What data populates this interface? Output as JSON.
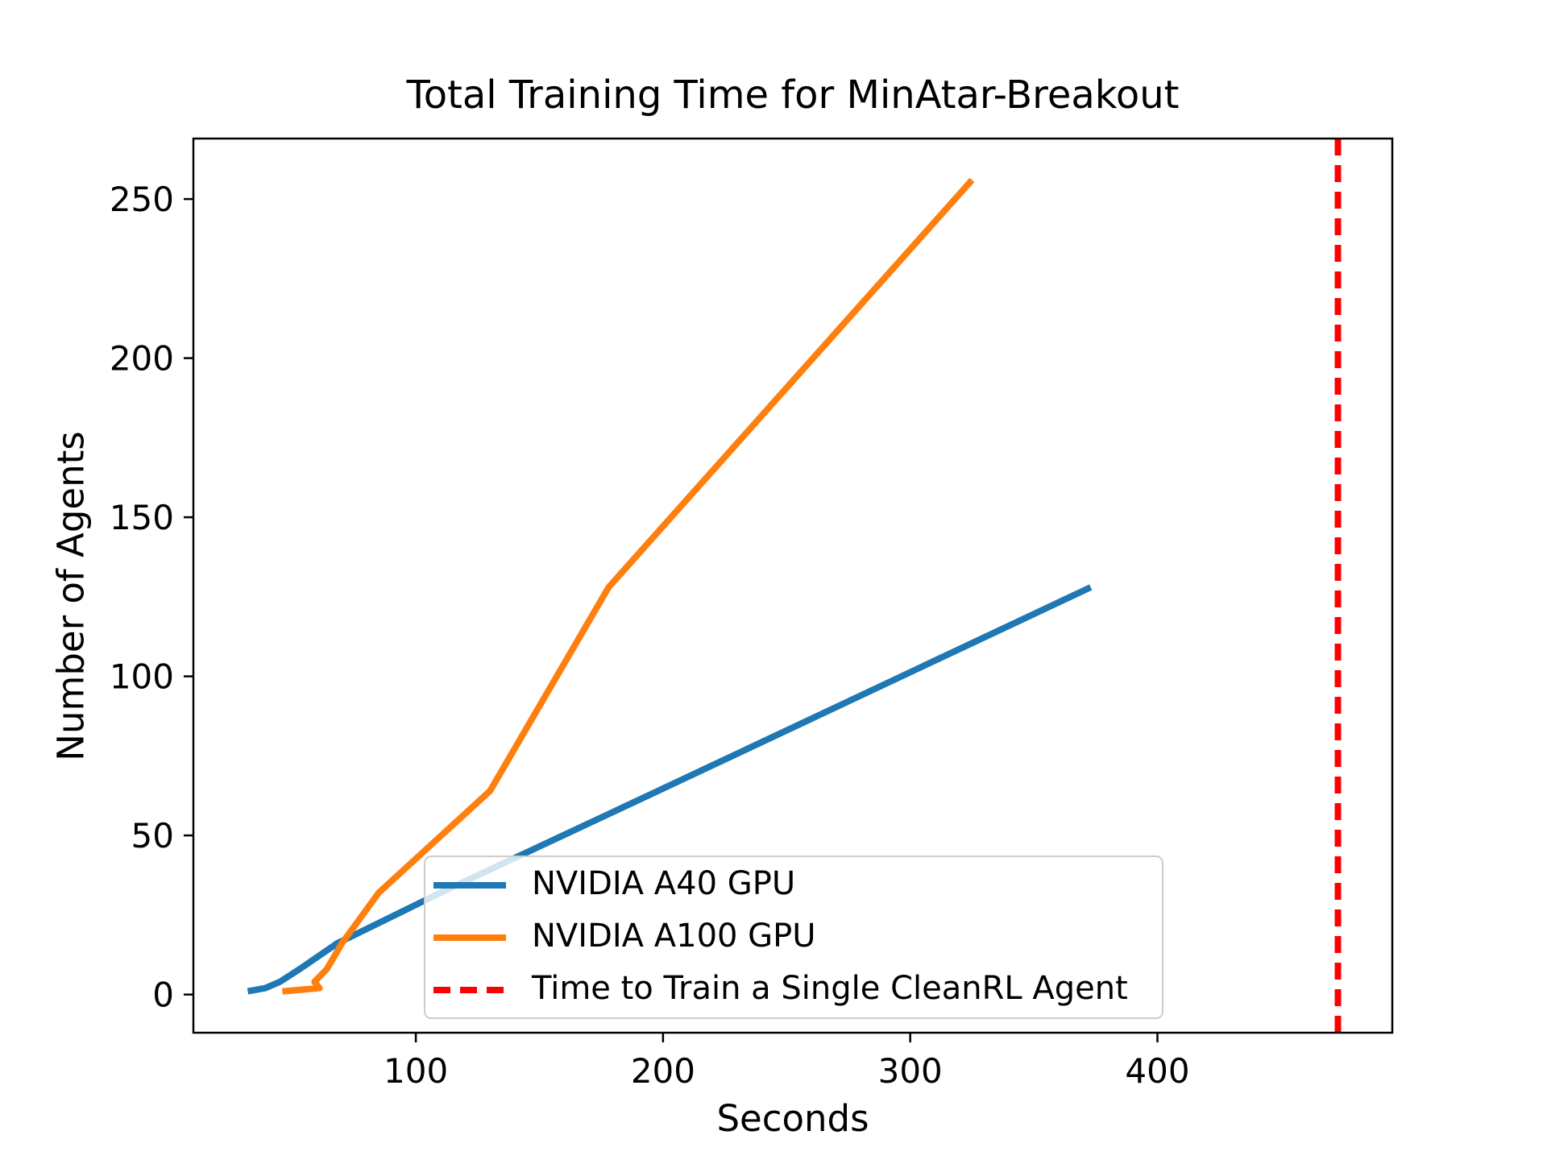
{
  "chart_data": {
    "type": "line",
    "title": "Total Training Time for MinAtar-Breakout",
    "xlabel": "Seconds",
    "ylabel": "Number of Agents",
    "xlim": [
      10,
      495
    ],
    "ylim": [
      -12,
      269
    ],
    "x_ticks": [
      100,
      200,
      300,
      400
    ],
    "y_ticks": [
      0,
      50,
      100,
      150,
      200,
      250
    ],
    "grid": false,
    "background": "#ffffff",
    "axis_color": "#000000",
    "legend_position": "lower center",
    "series": [
      {
        "name": "NVIDIA A40 GPU",
        "color": "#1f77b4",
        "style": "solid",
        "points": [
          [
            32,
            1
          ],
          [
            39,
            2
          ],
          [
            45,
            4
          ],
          [
            53,
            8
          ],
          [
            68,
            16
          ],
          [
            110,
            32
          ],
          [
            198,
            64
          ],
          [
            373,
            128
          ]
        ]
      },
      {
        "name": "NVIDIA A100 GPU",
        "color": "#ff7f0e",
        "style": "solid",
        "points": [
          [
            46,
            1
          ],
          [
            61,
            2
          ],
          [
            59,
            4
          ],
          [
            64,
            8
          ],
          [
            70,
            16
          ],
          [
            85,
            32
          ],
          [
            130,
            64
          ],
          [
            178,
            128
          ],
          [
            325,
            256
          ]
        ]
      }
    ],
    "vline": {
      "label": "Time to Train a Single CleanRL Agent",
      "x": 473,
      "color": "#ff0000",
      "style": "dashed"
    }
  }
}
